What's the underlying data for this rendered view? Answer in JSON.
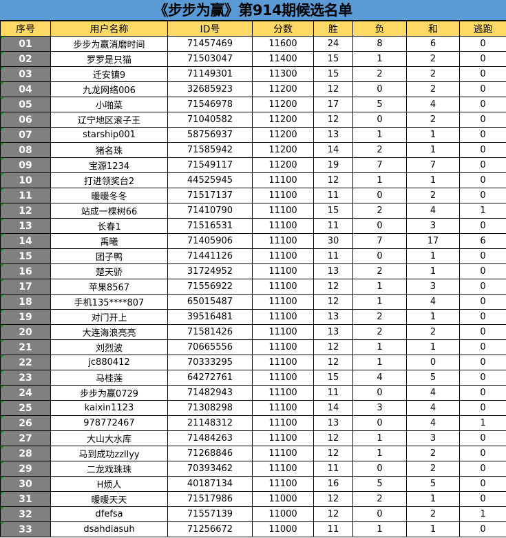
{
  "title": "《步步为赢》第914期候选名单",
  "colors": {
    "title_bg": "#5b9bd5",
    "header_bg": "#ffd966",
    "index_bg": "#808080",
    "comment_marker": "#1a9a1a"
  },
  "columns": [
    "序号",
    "用户名称",
    "ID号",
    "分数",
    "胜",
    "负",
    "和",
    "逃跑"
  ],
  "rows": [
    [
      "01",
      "步步为赢消磨时间",
      "71457469",
      "11600",
      "24",
      "8",
      "6",
      "0"
    ],
    [
      "02",
      "罗罗是只猫",
      "71503047",
      "11400",
      "15",
      "1",
      "2",
      "0"
    ],
    [
      "03",
      "迁安镇9",
      "71149301",
      "11300",
      "15",
      "2",
      "2",
      "0"
    ],
    [
      "04",
      "九龙网络006",
      "32685923",
      "11200",
      "12",
      "0",
      "2",
      "0"
    ],
    [
      "05",
      "小啪菜",
      "71546978",
      "11200",
      "17",
      "5",
      "4",
      "0"
    ],
    [
      "06",
      "辽宁地区滚子王",
      "71040582",
      "11200",
      "12",
      "0",
      "2",
      "0"
    ],
    [
      "07",
      "starship001",
      "58756937",
      "11200",
      "13",
      "1",
      "1",
      "0"
    ],
    [
      "08",
      "猪名珠",
      "71585942",
      "11200",
      "14",
      "2",
      "1",
      "0"
    ],
    [
      "09",
      "宝源1234",
      "71549117",
      "11200",
      "19",
      "7",
      "7",
      "0"
    ],
    [
      "10",
      "打进领奖台2",
      "44525945",
      "11100",
      "12",
      "1",
      "1",
      "0"
    ],
    [
      "11",
      "暖暖冬冬",
      "71517137",
      "11100",
      "11",
      "0",
      "2",
      "0"
    ],
    [
      "12",
      "站成一棵树66",
      "71410790",
      "11100",
      "15",
      "2",
      "4",
      "1"
    ],
    [
      "13",
      "长春1",
      "71516531",
      "11100",
      "11",
      "0",
      "3",
      "0"
    ],
    [
      "14",
      "禹曦",
      "71405906",
      "11100",
      "30",
      "7",
      "17",
      "6"
    ],
    [
      "15",
      "团子鸭",
      "71441126",
      "11100",
      "11",
      "0",
      "1",
      "0"
    ],
    [
      "16",
      "楚天骄",
      "31724952",
      "11100",
      "13",
      "2",
      "1",
      "0"
    ],
    [
      "17",
      "苹果8567",
      "71556922",
      "11100",
      "12",
      "1",
      "3",
      "0"
    ],
    [
      "18",
      "手机135****807",
      "65015487",
      "11100",
      "12",
      "1",
      "4",
      "0"
    ],
    [
      "19",
      "对门开上",
      "39516481",
      "11100",
      "13",
      "2",
      "1",
      "0"
    ],
    [
      "20",
      "大连海浪亮亮",
      "71581426",
      "11100",
      "13",
      "2",
      "2",
      "0"
    ],
    [
      "21",
      "刘烈波",
      "70665556",
      "11100",
      "12",
      "1",
      "1",
      "0"
    ],
    [
      "22",
      "jc880412",
      "70333295",
      "11100",
      "12",
      "1",
      "0",
      "0"
    ],
    [
      "23",
      "马桂莲",
      "64272761",
      "11100",
      "15",
      "4",
      "5",
      "0"
    ],
    [
      "24",
      "步步为赢0729",
      "71482943",
      "11100",
      "11",
      "0",
      "4",
      "0"
    ],
    [
      "25",
      "kaixin1123",
      "71308298",
      "11100",
      "14",
      "3",
      "4",
      "0"
    ],
    [
      "26",
      "978772467",
      "21148312",
      "11100",
      "13",
      "0",
      "4",
      "1"
    ],
    [
      "27",
      "大山大水库",
      "71484263",
      "11100",
      "12",
      "1",
      "3",
      "0"
    ],
    [
      "28",
      "马到成功zzllyy",
      "71268846",
      "11100",
      "12",
      "1",
      "2",
      "0"
    ],
    [
      "29",
      "二龙戏珠珠",
      "70393462",
      "11100",
      "11",
      "0",
      "2",
      "0"
    ],
    [
      "30",
      "H烦人",
      "40187134",
      "11100",
      "16",
      "5",
      "5",
      "0"
    ],
    [
      "31",
      "暖暖天天",
      "71517986",
      "11000",
      "12",
      "2",
      "1",
      "0"
    ],
    [
      "32",
      "dfefsa",
      "71557139",
      "11000",
      "12",
      "0",
      "2",
      "1"
    ],
    [
      "33",
      "dsahdiasuh",
      "71256672",
      "11000",
      "11",
      "1",
      "1",
      "0"
    ]
  ]
}
